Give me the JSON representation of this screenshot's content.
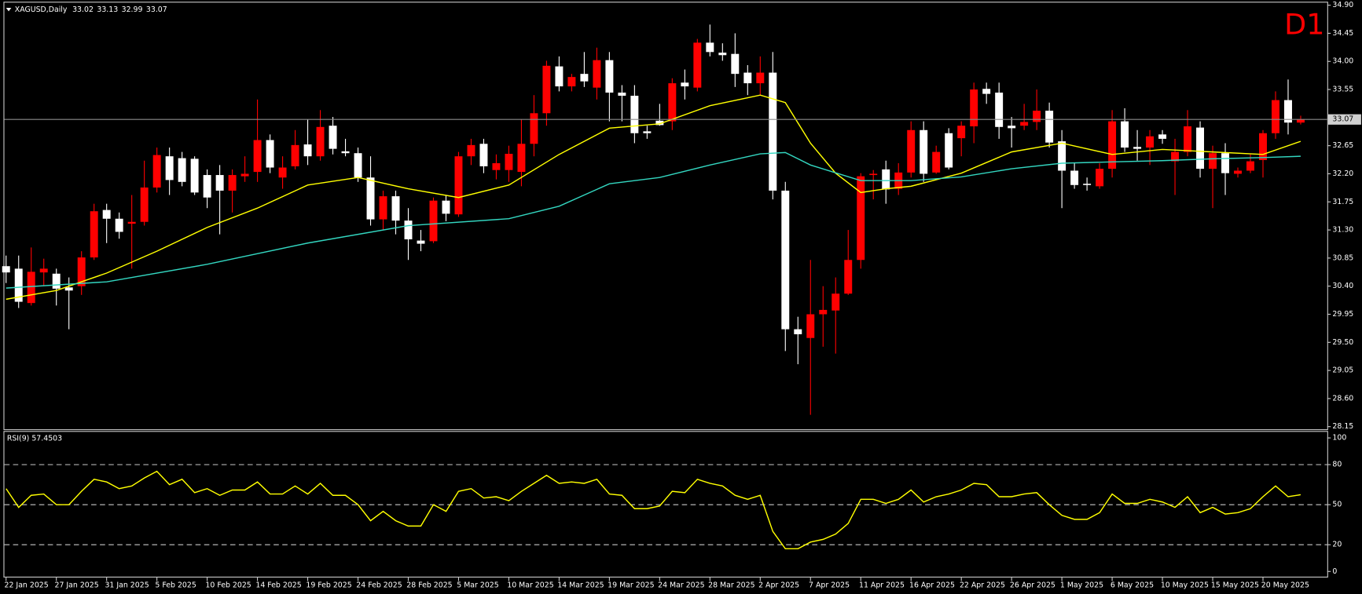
{
  "chart_data": [
    {
      "type": "candlestick",
      "title": "XAGUSD,Daily",
      "timeframe": "D1",
      "up_color": "#ff0000",
      "down_color": "#ffffff",
      "open": [
        30.72,
        30.68,
        30.13,
        30.62,
        30.6,
        30.38,
        30.4,
        30.86,
        31.62,
        31.48,
        31.4,
        31.43,
        31.98,
        32.48,
        32.45,
        32.44,
        32.18,
        32.18,
        31.93,
        32.16,
        32.23,
        32.74,
        32.14,
        32.32,
        32.67,
        32.48,
        32.97,
        32.56,
        32.53,
        32.14,
        31.47,
        31.84,
        31.45,
        31.13,
        31.12,
        31.77,
        31.55,
        32.48,
        32.68,
        32.26,
        32.26,
        32.23,
        32.68,
        33.17,
        33.92,
        33.6,
        33.8,
        33.58,
        34.02,
        33.5,
        33.45,
        32.88,
        33.05,
        33.04,
        33.66,
        33.58,
        34.3,
        34.14,
        34.12,
        33.82,
        33.65,
        33.82,
        31.93,
        29.71,
        29.57,
        29.95,
        30.01,
        30.28,
        30.82,
        32.18,
        32.27,
        31.96,
        32.22,
        32.9,
        32.22,
        32.85,
        32.77,
        32.96,
        33.56,
        33.5,
        32.97,
        32.97,
        33.03,
        33.21,
        32.72,
        32.25,
        32.04,
        32.0,
        32.28,
        33.04,
        32.63,
        32.62,
        32.83,
        32.4,
        32.55,
        32.94,
        32.28,
        32.53,
        32.2,
        32.25,
        32.42,
        32.85,
        33.38,
        33.02
      ],
      "high": [
        30.89,
        30.89,
        31.02,
        30.84,
        30.68,
        30.54,
        30.96,
        31.72,
        31.72,
        31.58,
        31.86,
        32.41,
        32.62,
        32.62,
        32.55,
        32.48,
        32.27,
        32.34,
        32.27,
        32.48,
        33.39,
        32.83,
        32.48,
        32.9,
        33.07,
        33.22,
        33.11,
        32.76,
        32.62,
        32.48,
        31.93,
        31.93,
        31.65,
        31.3,
        31.82,
        31.86,
        32.55,
        32.76,
        32.76,
        32.51,
        32.65,
        33.07,
        33.46,
        34.01,
        34.08,
        33.8,
        34.15,
        34.22,
        34.15,
        33.62,
        33.62,
        32.97,
        33.32,
        33.73,
        33.87,
        34.36,
        34.59,
        34.29,
        34.45,
        33.94,
        34.08,
        34.15,
        32.07,
        29.91,
        30.82,
        30.4,
        30.54,
        31.3,
        32.21,
        32.26,
        32.41,
        32.37,
        33.04,
        33.04,
        32.65,
        32.93,
        33.04,
        33.66,
        33.66,
        33.66,
        33.11,
        33.32,
        33.55,
        33.34,
        32.9,
        32.37,
        32.14,
        32.37,
        33.22,
        33.25,
        32.9,
        32.9,
        32.9,
        32.76,
        33.22,
        33.04,
        32.65,
        32.69,
        32.3,
        32.51,
        32.9,
        33.52,
        33.71,
        33.13
      ],
      "low": [
        30.45,
        30.05,
        30.09,
        30.4,
        30.09,
        29.71,
        30.26,
        30.82,
        31.09,
        31.16,
        30.68,
        31.37,
        31.9,
        31.86,
        32.0,
        31.86,
        31.65,
        31.23,
        31.58,
        32.07,
        32.07,
        32.21,
        31.96,
        32.27,
        32.34,
        32.41,
        32.51,
        32.48,
        32.07,
        31.37,
        31.3,
        31.23,
        30.82,
        30.96,
        31.09,
        31.44,
        31.51,
        32.34,
        32.21,
        32.11,
        32.07,
        32.0,
        32.48,
        32.97,
        33.52,
        33.52,
        33.59,
        33.39,
        33.04,
        33.04,
        32.69,
        32.76,
        32.97,
        32.9,
        33.39,
        33.52,
        34.08,
        34.01,
        33.59,
        33.46,
        33.46,
        31.79,
        29.36,
        29.15,
        28.34,
        29.43,
        29.32,
        30.26,
        30.68,
        31.79,
        31.72,
        31.86,
        32.14,
        32.07,
        32.2,
        32.27,
        32.48,
        32.69,
        33.32,
        32.76,
        32.62,
        32.9,
        32.9,
        32.62,
        31.65,
        31.96,
        31.93,
        31.96,
        32.14,
        32.55,
        32.41,
        32.34,
        32.68,
        31.86,
        32.48,
        32.14,
        31.65,
        31.86,
        32.14,
        32.21,
        32.14,
        32.76,
        32.83,
        32.99
      ],
      "close": [
        30.62,
        30.15,
        30.63,
        30.68,
        30.36,
        30.33,
        30.86,
        31.6,
        31.48,
        31.27,
        31.43,
        31.98,
        32.5,
        32.1,
        32.07,
        31.9,
        31.82,
        31.93,
        32.18,
        32.2,
        32.74,
        32.3,
        32.3,
        32.66,
        32.48,
        32.95,
        32.6,
        32.53,
        32.14,
        31.47,
        31.84,
        31.45,
        31.15,
        31.08,
        31.77,
        31.56,
        32.48,
        32.66,
        32.32,
        32.37,
        32.52,
        32.68,
        33.17,
        33.93,
        33.6,
        33.75,
        33.68,
        34.02,
        33.5,
        33.45,
        32.85,
        32.85,
        32.98,
        33.65,
        33.6,
        34.3,
        34.15,
        34.1,
        33.8,
        33.65,
        33.82,
        31.93,
        29.71,
        29.63,
        29.95,
        30.02,
        30.28,
        30.82,
        32.16,
        32.2,
        31.95,
        32.22,
        32.9,
        32.2,
        32.55,
        32.3,
        32.97,
        33.55,
        33.48,
        32.95,
        32.93,
        33.03,
        33.21,
        32.7,
        32.25,
        32.02,
        32.02,
        32.28,
        33.04,
        32.62,
        32.6,
        32.8,
        32.76,
        32.55,
        32.96,
        32.28,
        32.53,
        32.21,
        32.25,
        32.4,
        32.85,
        33.38,
        33.02,
        33.07
      ],
      "overlays": [
        {
          "type": "line",
          "color": "#ffff00",
          "x": [
            0,
            4,
            8,
            12,
            16,
            20,
            24,
            28,
            32,
            36,
            40,
            44,
            48,
            52,
            56,
            60,
            62,
            64,
            66,
            68,
            70,
            72,
            76,
            80,
            84,
            88,
            92,
            96,
            100,
            103
          ],
          "values": [
            30.19,
            30.33,
            30.61,
            30.96,
            31.34,
            31.65,
            32.02,
            32.14,
            31.96,
            31.82,
            32.02,
            32.51,
            32.93,
            33.0,
            33.29,
            33.46,
            33.34,
            32.69,
            32.21,
            31.9,
            31.96,
            32.0,
            32.21,
            32.55,
            32.69,
            32.51,
            32.59,
            32.55,
            32.51,
            32.72
          ]
        },
        {
          "type": "line",
          "color": "#33d6c0",
          "x": [
            0,
            8,
            16,
            24,
            32,
            40,
            44,
            48,
            52,
            56,
            60,
            62,
            64,
            68,
            72,
            76,
            80,
            84,
            88,
            92,
            96,
            100,
            103
          ],
          "values": [
            30.37,
            30.47,
            30.75,
            31.09,
            31.37,
            31.48,
            31.68,
            32.04,
            32.14,
            32.34,
            32.52,
            32.54,
            32.34,
            32.09,
            32.09,
            32.15,
            32.28,
            32.37,
            32.39,
            32.41,
            32.44,
            32.46,
            32.48
          ]
        }
      ],
      "ylim": [
        28.15,
        34.9
      ],
      "yticks": [
        {
          "value": 34.9,
          "label": "34.90"
        },
        34.45,
        {
          "value": 34,
          "label": "34.00"
        },
        33.55,
        32.65,
        {
          "value": 32.2,
          "label": "32.20"
        },
        31.75,
        {
          "value": 31.3,
          "label": "31.30"
        },
        30.85,
        {
          "value": 30.4,
          "label": "30.40"
        },
        29.95,
        {
          "value": 29.5,
          "label": "29.50"
        },
        29.05,
        {
          "value": 28.6,
          "label": "28.60"
        },
        28.15
      ],
      "current_price_line": true
    },
    {
      "type": "line",
      "title": "RSI(9) 57.4503",
      "color": "#ffff00",
      "values": [
        62,
        48,
        57,
        58,
        50,
        50,
        60,
        69,
        67,
        62,
        64,
        70,
        75,
        65,
        69,
        59,
        62,
        57,
        61,
        61,
        67,
        58,
        58,
        64,
        58,
        66,
        57,
        57,
        50,
        38,
        45,
        38,
        34,
        34,
        50,
        45,
        60,
        62,
        55,
        56,
        53,
        60,
        66,
        72,
        66,
        67,
        66,
        69,
        58,
        57,
        47,
        47,
        49,
        60,
        59,
        69,
        66,
        64,
        57,
        54,
        57,
        30,
        17,
        17,
        22,
        24,
        28,
        36,
        54,
        54,
        51,
        54,
        61,
        52,
        56,
        58,
        61,
        66,
        65,
        56,
        56,
        58,
        59,
        50,
        42,
        39,
        39,
        44,
        58,
        51,
        51,
        54,
        52,
        48,
        56,
        44,
        48,
        43,
        44,
        47,
        56,
        64,
        56,
        57.45
      ],
      "ylim": [
        0,
        100
      ],
      "yticks": [
        0,
        20,
        50,
        80,
        100
      ],
      "grid": "dashed",
      "xticks": [
        {
          "value": 0,
          "label": "22 Jan 2025"
        },
        {
          "value": 4,
          "label": "27 Jan 2025"
        },
        {
          "value": 8,
          "label": "31 Jan 2025"
        },
        {
          "value": 12,
          "label": "5 Feb 2025"
        },
        {
          "value": 16,
          "label": "10 Feb 2025"
        },
        {
          "value": 20,
          "label": "14 Feb 2025"
        },
        {
          "value": 24,
          "label": "19 Feb 2025"
        },
        {
          "value": 28,
          "label": "24 Feb 2025"
        },
        {
          "value": 32,
          "label": "28 Feb 2025"
        },
        {
          "value": 36,
          "label": "5 Mar 2025"
        },
        {
          "value": 40,
          "label": "10 Mar 2025"
        },
        {
          "value": 44,
          "label": "14 Mar 2025"
        },
        {
          "value": 48,
          "label": "19 Mar 2025"
        },
        {
          "value": 52,
          "label": "24 Mar 2025"
        },
        {
          "value": 56,
          "label": "28 Mar 2025"
        },
        {
          "value": 60,
          "label": "2 Apr 2025"
        },
        {
          "value": 64,
          "label": "7 Apr 2025"
        },
        {
          "value": 68,
          "label": "11 Apr 2025"
        },
        {
          "value": 72,
          "label": "16 Apr 2025"
        },
        {
          "value": 76,
          "label": "22 Apr 2025"
        },
        {
          "value": 80,
          "label": "26 Apr 2025"
        },
        {
          "value": 84,
          "label": "1 May 2025"
        },
        {
          "value": 88,
          "label": "6 May 2025"
        },
        {
          "value": 92,
          "label": "10 May 2025"
        },
        {
          "value": 96,
          "label": "15 May 2025"
        },
        {
          "value": 100,
          "label": "20 May 2025"
        }
      ]
    }
  ]
}
